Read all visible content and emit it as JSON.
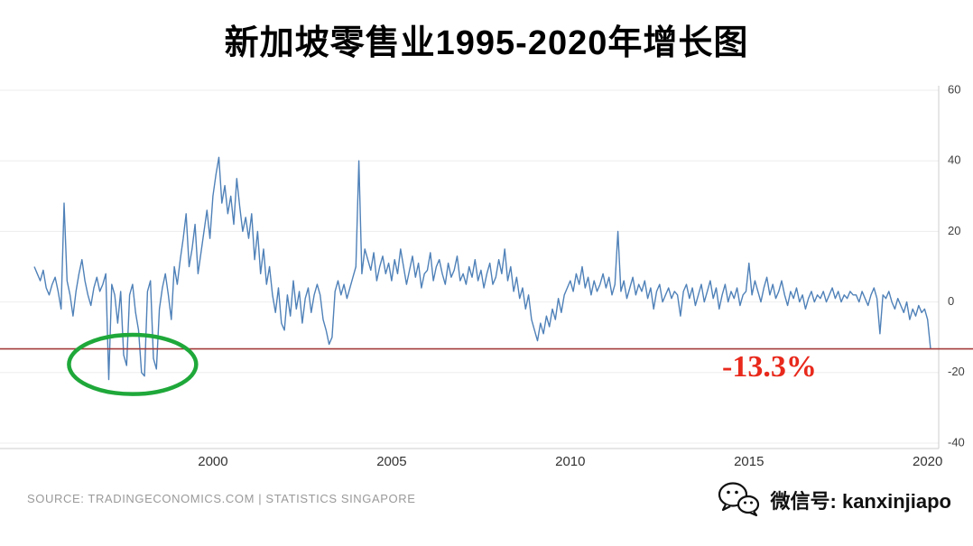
{
  "chart_data": {
    "type": "line",
    "title": "新加坡零售业1995-2020年增长图",
    "xlabel": "",
    "ylabel": "",
    "x_start": 1995,
    "points_per_year": 12,
    "ylim": [
      -40,
      60
    ],
    "yticks": [
      60,
      40,
      20,
      0,
      -20,
      -40
    ],
    "xticks": [
      2000,
      2005,
      2010,
      2015,
      2020
    ],
    "grid": "horizontal-light",
    "line_color": "#4f81b8",
    "values": [
      10,
      8,
      6,
      9,
      4,
      2,
      5,
      7,
      3,
      -2,
      28,
      6,
      2,
      -4,
      3,
      8,
      12,
      6,
      2,
      -1,
      4,
      7,
      3,
      5,
      8,
      -22,
      5,
      2,
      -6,
      3,
      -15,
      -18,
      2,
      5,
      -3,
      -8,
      -20,
      -21,
      3,
      6,
      -16,
      -19,
      -2,
      4,
      8,
      2,
      -5,
      10,
      5,
      12,
      18,
      25,
      10,
      15,
      22,
      8,
      14,
      20,
      26,
      18,
      30,
      36,
      41,
      28,
      33,
      25,
      30,
      22,
      35,
      27,
      20,
      24,
      18,
      25,
      12,
      20,
      8,
      15,
      5,
      10,
      2,
      -3,
      4,
      -6,
      -8,
      2,
      -4,
      6,
      -2,
      3,
      -6,
      1,
      4,
      -3,
      2,
      5,
      2,
      -5,
      -8,
      -12,
      -10,
      3,
      6,
      2,
      5,
      1,
      4,
      7,
      10,
      40,
      8,
      15,
      12,
      9,
      14,
      6,
      10,
      13,
      8,
      11,
      6,
      12,
      8,
      15,
      10,
      5,
      9,
      13,
      7,
      11,
      4,
      8,
      9,
      14,
      6,
      10,
      12,
      8,
      5,
      11,
      7,
      9,
      13,
      6,
      8,
      5,
      10,
      7,
      12,
      6,
      9,
      4,
      8,
      11,
      5,
      7,
      12,
      8,
      15,
      6,
      10,
      3,
      7,
      1,
      4,
      -2,
      2,
      -5,
      -8,
      -11,
      -6,
      -9,
      -4,
      -7,
      -2,
      -5,
      1,
      -3,
      2,
      4,
      6,
      3,
      8,
      5,
      10,
      4,
      7,
      2,
      6,
      3,
      5,
      8,
      4,
      7,
      2,
      5,
      20,
      3,
      6,
      1,
      4,
      7,
      2,
      5,
      3,
      6,
      1,
      4,
      -2,
      3,
      5,
      0,
      2,
      4,
      1,
      3,
      2,
      -4,
      3,
      5,
      1,
      4,
      -1,
      2,
      5,
      0,
      3,
      6,
      1,
      4,
      -2,
      2,
      5,
      0,
      3,
      1,
      4,
      -1,
      2,
      3,
      11,
      2,
      6,
      3,
      0,
      4,
      7,
      2,
      5,
      1,
      3,
      6,
      2,
      -1,
      3,
      1,
      4,
      0,
      2,
      -2,
      1,
      3,
      0,
      2,
      1,
      3,
      0,
      2,
      4,
      1,
      3,
      0,
      2,
      1,
      3,
      2,
      2,
      0,
      3,
      1,
      -1,
      2,
      4,
      1,
      -9,
      2,
      1,
      3,
      0,
      -2,
      1,
      -1,
      -3,
      0,
      -5,
      -2,
      -4,
      -1,
      -3,
      -2,
      -5,
      -13.3
    ]
  },
  "annotations": {
    "red_line_value": -13.3,
    "red_line_color": "#a33a3a",
    "min_label": "-13.3%",
    "min_label_color": "#e8291c",
    "green_circle": {
      "center_year": 1997.75,
      "center_value": -17.7,
      "radius_years": 1.78,
      "radius_values": 8.4,
      "color": "#1fa83a"
    }
  },
  "footer": {
    "source": "SOURCE: TRADINGECONOMICS.COM | STATISTICS SINGAPORE",
    "wechat_label": "微信号: kanxinjiapo"
  },
  "colors": {
    "tick_text": "#404040",
    "axis_line": "#cccccc",
    "gridline": "#ededed"
  }
}
